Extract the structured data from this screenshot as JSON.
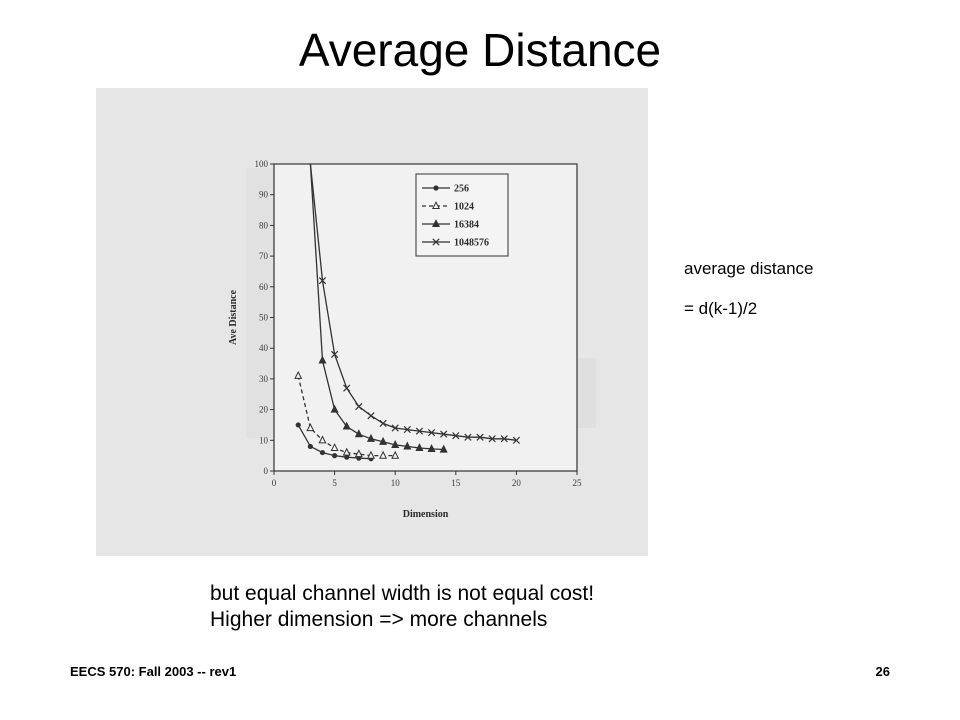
{
  "slide": {
    "title": "Average Distance",
    "side_note": [
      "average distance",
      "= d(k-1)/2"
    ],
    "caption": [
      "but equal channel width is not equal cost!",
      "Higher dimension => more channels"
    ],
    "footer_left": "EECS 570: Fall 2003 -- rev1",
    "page_number": "26"
  },
  "chart_data": {
    "type": "line",
    "title": "",
    "xlabel": "Dimension",
    "ylabel": "Ave Distance",
    "xlim": [
      0,
      25
    ],
    "ylim": [
      0,
      100
    ],
    "xticks": [
      0,
      5,
      10,
      15,
      20,
      25
    ],
    "yticks": [
      0,
      10,
      20,
      30,
      40,
      50,
      60,
      70,
      80,
      90,
      100
    ],
    "grid": false,
    "legend": "top-right",
    "series": [
      {
        "name": "256",
        "marker": "circle",
        "dash": "solid",
        "x": [
          2,
          3,
          4,
          5,
          6,
          7,
          8
        ],
        "y": [
          15,
          8,
          6,
          5,
          4.5,
          4.2,
          4
        ]
      },
      {
        "name": "1024",
        "marker": "triangle-open",
        "dash": "dashed",
        "x": [
          2,
          3,
          4,
          5,
          6,
          7,
          8,
          9,
          10
        ],
        "y": [
          31,
          14,
          10,
          7.5,
          6,
          5.5,
          5,
          5,
          5
        ]
      },
      {
        "name": "16384",
        "marker": "triangle",
        "dash": "solid",
        "x": [
          3,
          4,
          5,
          6,
          7,
          8,
          9,
          10,
          11,
          12,
          13,
          14
        ],
        "y": [
          100,
          36,
          20,
          14.5,
          12,
          10.5,
          9.5,
          8.5,
          8,
          7.5,
          7.2,
          7
        ]
      },
      {
        "name": "1048576",
        "marker": "x",
        "dash": "solid",
        "x": [
          3,
          4,
          5,
          6,
          7,
          8,
          9,
          10,
          11,
          12,
          13,
          14,
          15,
          16,
          17,
          18,
          19,
          20
        ],
        "y": [
          100,
          62,
          38,
          27,
          21,
          18,
          15.5,
          14,
          13.5,
          13,
          12.5,
          12,
          11.5,
          11,
          11,
          10.5,
          10.5,
          10
        ]
      }
    ]
  }
}
